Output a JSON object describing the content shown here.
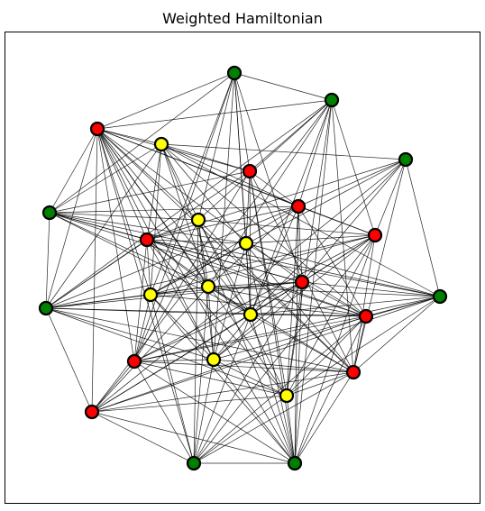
{
  "title": "Weighted Hamiltonian",
  "graph": {
    "colors": {
      "green": "#008000",
      "red": "#ff0000",
      "yellow": "#ffff00",
      "edge": "#000000",
      "node_border": "#000000"
    },
    "nodes": [
      {
        "id": "g1",
        "color": "green"
      },
      {
        "id": "g2",
        "color": "green"
      },
      {
        "id": "g3",
        "color": "green"
      },
      {
        "id": "g4",
        "color": "green"
      },
      {
        "id": "g5",
        "color": "green"
      },
      {
        "id": "g6",
        "color": "green"
      },
      {
        "id": "g7",
        "color": "green"
      },
      {
        "id": "g8",
        "color": "green"
      },
      {
        "id": "r1",
        "color": "red"
      },
      {
        "id": "r2",
        "color": "red"
      },
      {
        "id": "r3",
        "color": "red"
      },
      {
        "id": "r4",
        "color": "red"
      },
      {
        "id": "r5",
        "color": "red"
      },
      {
        "id": "r6",
        "color": "red"
      },
      {
        "id": "r7",
        "color": "red"
      },
      {
        "id": "r8",
        "color": "red"
      },
      {
        "id": "r9",
        "color": "red"
      },
      {
        "id": "r10",
        "color": "red"
      },
      {
        "id": "y1",
        "color": "yellow"
      },
      {
        "id": "y2",
        "color": "yellow"
      },
      {
        "id": "y3",
        "color": "yellow"
      },
      {
        "id": "y4",
        "color": "yellow"
      },
      {
        "id": "y5",
        "color": "yellow"
      },
      {
        "id": "y6",
        "color": "yellow"
      },
      {
        "id": "y7",
        "color": "yellow"
      },
      {
        "id": "y8",
        "color": "yellow"
      }
    ],
    "edges": [
      [
        "r1",
        "g1"
      ],
      [
        "r1",
        "g2"
      ],
      [
        "r1",
        "g4"
      ],
      [
        "r1",
        "g5"
      ],
      [
        "r1",
        "r2"
      ],
      [
        "r1",
        "r3"
      ],
      [
        "r1",
        "r4"
      ],
      [
        "r1",
        "r5"
      ],
      [
        "r1",
        "r6"
      ],
      [
        "r1",
        "r8"
      ],
      [
        "r1",
        "r9"
      ],
      [
        "r1",
        "r10"
      ],
      [
        "r1",
        "y1"
      ],
      [
        "r1",
        "y2"
      ],
      [
        "r1",
        "y4"
      ],
      [
        "r1",
        "y5"
      ],
      [
        "r1",
        "y6"
      ],
      [
        "r1",
        "y7"
      ],
      [
        "r1",
        "y8"
      ],
      [
        "r1",
        "g7"
      ],
      [
        "r1",
        "g8"
      ],
      [
        "g1",
        "g2"
      ],
      [
        "g1",
        "r2"
      ],
      [
        "g1",
        "y2"
      ],
      [
        "g1",
        "y3"
      ],
      [
        "g1",
        "y6"
      ],
      [
        "g1",
        "r8"
      ],
      [
        "g1",
        "y7"
      ],
      [
        "g1",
        "g4"
      ],
      [
        "g1",
        "r6"
      ],
      [
        "g1",
        "y4"
      ],
      [
        "g2",
        "r2"
      ],
      [
        "g2",
        "r3"
      ],
      [
        "g2",
        "y5"
      ],
      [
        "g2",
        "y6"
      ],
      [
        "g2",
        "r5"
      ],
      [
        "g2",
        "r10"
      ],
      [
        "g2",
        "g5"
      ],
      [
        "g2",
        "g8"
      ],
      [
        "g2",
        "y2"
      ],
      [
        "g2",
        "r9"
      ],
      [
        "g2",
        "y8"
      ],
      [
        "g3",
        "r4"
      ],
      [
        "g3",
        "r6"
      ],
      [
        "g3",
        "r10"
      ],
      [
        "g3",
        "y6"
      ],
      [
        "g3",
        "y1"
      ],
      [
        "g3",
        "g6"
      ],
      [
        "g3",
        "r9"
      ],
      [
        "g3",
        "r5"
      ],
      [
        "g3",
        "r3"
      ],
      [
        "g3",
        "y4"
      ],
      [
        "y1",
        "r2"
      ],
      [
        "y1",
        "r3"
      ],
      [
        "y1",
        "r7"
      ],
      [
        "y1",
        "y2"
      ],
      [
        "y1",
        "y4"
      ],
      [
        "y1",
        "y5"
      ],
      [
        "y1",
        "g4"
      ],
      [
        "y1",
        "g5"
      ],
      [
        "y1",
        "g6"
      ],
      [
        "y1",
        "g8"
      ],
      [
        "y1",
        "r9"
      ],
      [
        "y1",
        "r4"
      ],
      [
        "r2",
        "r3"
      ],
      [
        "r2",
        "y3"
      ],
      [
        "r2",
        "y6"
      ],
      [
        "r2",
        "r8"
      ],
      [
        "r2",
        "g5"
      ],
      [
        "r2",
        "g8"
      ],
      [
        "r2",
        "y8"
      ],
      [
        "r2",
        "g4"
      ],
      [
        "r2",
        "r9"
      ],
      [
        "g4",
        "r4"
      ],
      [
        "g4",
        "r3"
      ],
      [
        "g4",
        "y3"
      ],
      [
        "g4",
        "y5"
      ],
      [
        "g4",
        "y2"
      ],
      [
        "g4",
        "r6"
      ],
      [
        "g4",
        "g5"
      ],
      [
        "g4",
        "r7"
      ],
      [
        "g4",
        "g6"
      ],
      [
        "g4",
        "y6"
      ],
      [
        "r3",
        "r4"
      ],
      [
        "r3",
        "r5"
      ],
      [
        "r3",
        "y6"
      ],
      [
        "r3",
        "r6"
      ],
      [
        "r3",
        "g8"
      ],
      [
        "r3",
        "y8"
      ],
      [
        "r3",
        "y4"
      ],
      [
        "r3",
        "g5"
      ],
      [
        "r3",
        "y5"
      ],
      [
        "r3",
        "r7"
      ],
      [
        "y2",
        "r4"
      ],
      [
        "y2",
        "y5"
      ],
      [
        "y2",
        "y6"
      ],
      [
        "y2",
        "r5"
      ],
      [
        "y2",
        "y8"
      ],
      [
        "y2",
        "r8"
      ],
      [
        "y2",
        "g7"
      ],
      [
        "y2",
        "r9"
      ],
      [
        "y2",
        "y7"
      ],
      [
        "r4",
        "y3"
      ],
      [
        "r4",
        "y4"
      ],
      [
        "r4",
        "y5"
      ],
      [
        "r4",
        "y6"
      ],
      [
        "r4",
        "r6"
      ],
      [
        "r4",
        "r7"
      ],
      [
        "r4",
        "g5"
      ],
      [
        "r4",
        "g6"
      ],
      [
        "r4",
        "y7"
      ],
      [
        "r4",
        "y8"
      ],
      [
        "r4",
        "r8"
      ],
      [
        "y3",
        "y6"
      ],
      [
        "y3",
        "r5"
      ],
      [
        "y3",
        "g6"
      ],
      [
        "y3",
        "r7"
      ],
      [
        "y3",
        "y4"
      ],
      [
        "y3",
        "g8"
      ],
      [
        "y3",
        "y7"
      ],
      [
        "g5",
        "y4"
      ],
      [
        "g5",
        "y5"
      ],
      [
        "g5",
        "y6"
      ],
      [
        "g5",
        "r6"
      ],
      [
        "g5",
        "y7"
      ],
      [
        "g5",
        "r10"
      ],
      [
        "g5",
        "r7"
      ],
      [
        "g5",
        "r9"
      ],
      [
        "g5",
        "r5"
      ],
      [
        "g5",
        "y8"
      ],
      [
        "y4",
        "y5"
      ],
      [
        "y4",
        "r5"
      ],
      [
        "y4",
        "r6"
      ],
      [
        "y4",
        "r7"
      ],
      [
        "y4",
        "r8"
      ],
      [
        "y4",
        "g7"
      ],
      [
        "y4",
        "g8"
      ],
      [
        "y4",
        "y7"
      ],
      [
        "y5",
        "y6"
      ],
      [
        "y5",
        "r6"
      ],
      [
        "y5",
        "r7"
      ],
      [
        "y5",
        "y7"
      ],
      [
        "y5",
        "g7"
      ],
      [
        "y5",
        "r9"
      ],
      [
        "y5",
        "r10"
      ],
      [
        "y5",
        "g6"
      ],
      [
        "r5",
        "r6"
      ],
      [
        "r5",
        "y6"
      ],
      [
        "r5",
        "r8"
      ],
      [
        "r5",
        "y7"
      ],
      [
        "r5",
        "r9"
      ],
      [
        "r5",
        "g7"
      ],
      [
        "r5",
        "y8"
      ],
      [
        "r5",
        "g8"
      ],
      [
        "g6",
        "r6"
      ],
      [
        "g6",
        "r9"
      ],
      [
        "g6",
        "r7"
      ],
      [
        "g6",
        "r8"
      ],
      [
        "g6",
        "y6"
      ],
      [
        "g6",
        "r10"
      ],
      [
        "g6",
        "y8"
      ],
      [
        "g6",
        "y7"
      ],
      [
        "y6",
        "r6"
      ],
      [
        "y6",
        "r7"
      ],
      [
        "y6",
        "y7"
      ],
      [
        "y6",
        "r9"
      ],
      [
        "y6",
        "g7"
      ],
      [
        "y6",
        "g8"
      ],
      [
        "y6",
        "r10"
      ],
      [
        "r6",
        "r7"
      ],
      [
        "r6",
        "y7"
      ],
      [
        "r6",
        "r8"
      ],
      [
        "r6",
        "r10"
      ],
      [
        "r6",
        "y8"
      ],
      [
        "r6",
        "g7"
      ],
      [
        "r6",
        "g8"
      ],
      [
        "r7",
        "r8"
      ],
      [
        "r7",
        "r10"
      ],
      [
        "r7",
        "y8"
      ],
      [
        "r7",
        "r9"
      ],
      [
        "r7",
        "g7"
      ],
      [
        "r7",
        "g8"
      ],
      [
        "r8",
        "y7"
      ],
      [
        "r8",
        "y8"
      ],
      [
        "r8",
        "r9"
      ],
      [
        "r8",
        "g7"
      ],
      [
        "r8",
        "g8"
      ],
      [
        "r8",
        "r10"
      ],
      [
        "y7",
        "r9"
      ],
      [
        "y7",
        "g7"
      ],
      [
        "y7",
        "g8"
      ],
      [
        "y7",
        "y8"
      ],
      [
        "r9",
        "y8"
      ],
      [
        "r9",
        "g7"
      ],
      [
        "r9",
        "g8"
      ],
      [
        "r9",
        "r10"
      ],
      [
        "y8",
        "r10"
      ],
      [
        "y8",
        "g7"
      ],
      [
        "y8",
        "g8"
      ],
      [
        "r10",
        "g7"
      ],
      [
        "r10",
        "g8"
      ],
      [
        "g7",
        "g8"
      ]
    ]
  }
}
